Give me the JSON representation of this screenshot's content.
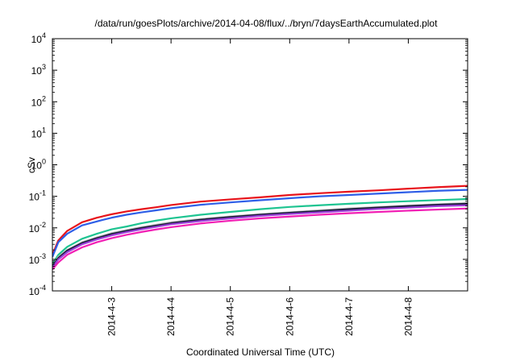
{
  "chart_data": {
    "type": "line",
    "title": "/data/run/goesPlots/archive/2014-04-08/flux/../bryn/7daysEarthAccumulated.plot",
    "xlabel": "Coordinated Universal Time (UTC)",
    "ylabel": "cSv",
    "yscale": "log",
    "ylim": [
      0.0001,
      10000
    ],
    "xlim": [
      2.0,
      9.0
    ],
    "grid": false,
    "legend": "none",
    "x_ticks": [
      {
        "value": 3,
        "label": "2014-4-3"
      },
      {
        "value": 4,
        "label": "2014-4-4"
      },
      {
        "value": 5,
        "label": "2014-4-5"
      },
      {
        "value": 6,
        "label": "2014-4-6"
      },
      {
        "value": 7,
        "label": "2014-4-7"
      },
      {
        "value": 8,
        "label": "2014-4-8"
      }
    ],
    "y_ticks": [
      {
        "value": 0.0001,
        "base": "10",
        "exp": "-4"
      },
      {
        "value": 0.001,
        "base": "10",
        "exp": "-3"
      },
      {
        "value": 0.01,
        "base": "10",
        "exp": "-2"
      },
      {
        "value": 0.1,
        "base": "10",
        "exp": "-1"
      },
      {
        "value": 1,
        "base": "10",
        "exp": "0"
      },
      {
        "value": 10,
        "base": "10",
        "exp": "1"
      },
      {
        "value": 100,
        "base": "10",
        "exp": "2"
      },
      {
        "value": 1000,
        "base": "10",
        "exp": "3"
      },
      {
        "value": 10000,
        "base": "10",
        "exp": "4"
      }
    ],
    "series": [
      {
        "color": "#e8141b",
        "x": [
          2.0,
          2.1,
          2.25,
          2.5,
          2.75,
          3.0,
          3.25,
          3.5,
          3.75,
          4.0,
          4.5,
          5.0,
          5.5,
          6.0,
          6.5,
          7.0,
          7.5,
          8.0,
          8.5,
          9.0
        ],
        "y": [
          0.0014,
          0.004,
          0.008,
          0.015,
          0.021,
          0.027,
          0.033,
          0.039,
          0.045,
          0.053,
          0.068,
          0.08,
          0.093,
          0.11,
          0.125,
          0.14,
          0.155,
          0.175,
          0.195,
          0.215
        ]
      },
      {
        "color": "#2e5fe8",
        "x": [
          2.0,
          2.1,
          2.25,
          2.5,
          2.75,
          3.0,
          3.25,
          3.5,
          3.75,
          4.0,
          4.5,
          5.0,
          5.5,
          6.0,
          6.5,
          7.0,
          7.5,
          8.0,
          8.5,
          9.0
        ],
        "y": [
          0.0012,
          0.0035,
          0.0065,
          0.012,
          0.016,
          0.021,
          0.026,
          0.031,
          0.036,
          0.042,
          0.054,
          0.064,
          0.075,
          0.087,
          0.1,
          0.11,
          0.122,
          0.135,
          0.15,
          0.16
        ]
      },
      {
        "color": "#1ec491",
        "x": [
          2.0,
          2.1,
          2.25,
          2.5,
          2.75,
          3.0,
          3.25,
          3.5,
          3.75,
          4.0,
          4.5,
          5.0,
          5.5,
          6.0,
          6.5,
          7.0,
          7.5,
          8.0,
          8.5,
          9.0
        ],
        "y": [
          0.0007,
          0.0014,
          0.0025,
          0.0045,
          0.0065,
          0.009,
          0.011,
          0.014,
          0.017,
          0.02,
          0.026,
          0.032,
          0.039,
          0.046,
          0.052,
          0.058,
          0.064,
          0.07,
          0.076,
          0.082
        ]
      },
      {
        "color": "#b7b7b7",
        "x": [
          2.0,
          2.1,
          2.25,
          2.5,
          2.75,
          3.0,
          3.25,
          3.5,
          3.75,
          4.0,
          4.5,
          5.0,
          5.5,
          6.0,
          6.5,
          7.0,
          7.5,
          8.0,
          8.5,
          9.0
        ],
        "y": [
          0.0006,
          0.0012,
          0.002,
          0.0035,
          0.005,
          0.0068,
          0.0085,
          0.0105,
          0.0125,
          0.015,
          0.019,
          0.023,
          0.027,
          0.031,
          0.036,
          0.041,
          0.046,
          0.051,
          0.056,
          0.061
        ]
      },
      {
        "color": "#1a1a3a",
        "x": [
          2.0,
          2.1,
          2.25,
          2.5,
          2.75,
          3.0,
          3.25,
          3.5,
          3.75,
          4.0,
          4.5,
          5.0,
          5.5,
          6.0,
          6.5,
          7.0,
          7.5,
          8.0,
          8.5,
          9.0
        ],
        "y": [
          0.0006,
          0.0011,
          0.0019,
          0.0033,
          0.0047,
          0.0064,
          0.008,
          0.0099,
          0.0118,
          0.014,
          0.018,
          0.022,
          0.026,
          0.03,
          0.034,
          0.039,
          0.044,
          0.049,
          0.054,
          0.058
        ]
      },
      {
        "color": "#9b3fd9",
        "x": [
          2.0,
          2.1,
          2.25,
          2.5,
          2.75,
          3.0,
          3.25,
          3.5,
          3.75,
          4.0,
          4.5,
          5.0,
          5.5,
          6.0,
          6.5,
          7.0,
          7.5,
          8.0,
          8.5,
          9.0
        ],
        "y": [
          0.00055,
          0.001,
          0.0017,
          0.003,
          0.0043,
          0.0058,
          0.0073,
          0.009,
          0.0108,
          0.013,
          0.0165,
          0.02,
          0.024,
          0.0275,
          0.031,
          0.035,
          0.04,
          0.044,
          0.049,
          0.052
        ]
      },
      {
        "color": "#f21fb4",
        "x": [
          2.0,
          2.1,
          2.25,
          2.5,
          2.75,
          3.0,
          3.25,
          3.5,
          3.75,
          4.0,
          4.5,
          5.0,
          5.5,
          6.0,
          6.5,
          7.0,
          7.5,
          8.0,
          8.5,
          9.0
        ],
        "y": [
          0.00048,
          0.0008,
          0.0014,
          0.0024,
          0.0035,
          0.0047,
          0.006,
          0.0074,
          0.0089,
          0.0105,
          0.0138,
          0.0168,
          0.02,
          0.0228,
          0.026,
          0.029,
          0.032,
          0.035,
          0.038,
          0.041
        ]
      }
    ]
  }
}
